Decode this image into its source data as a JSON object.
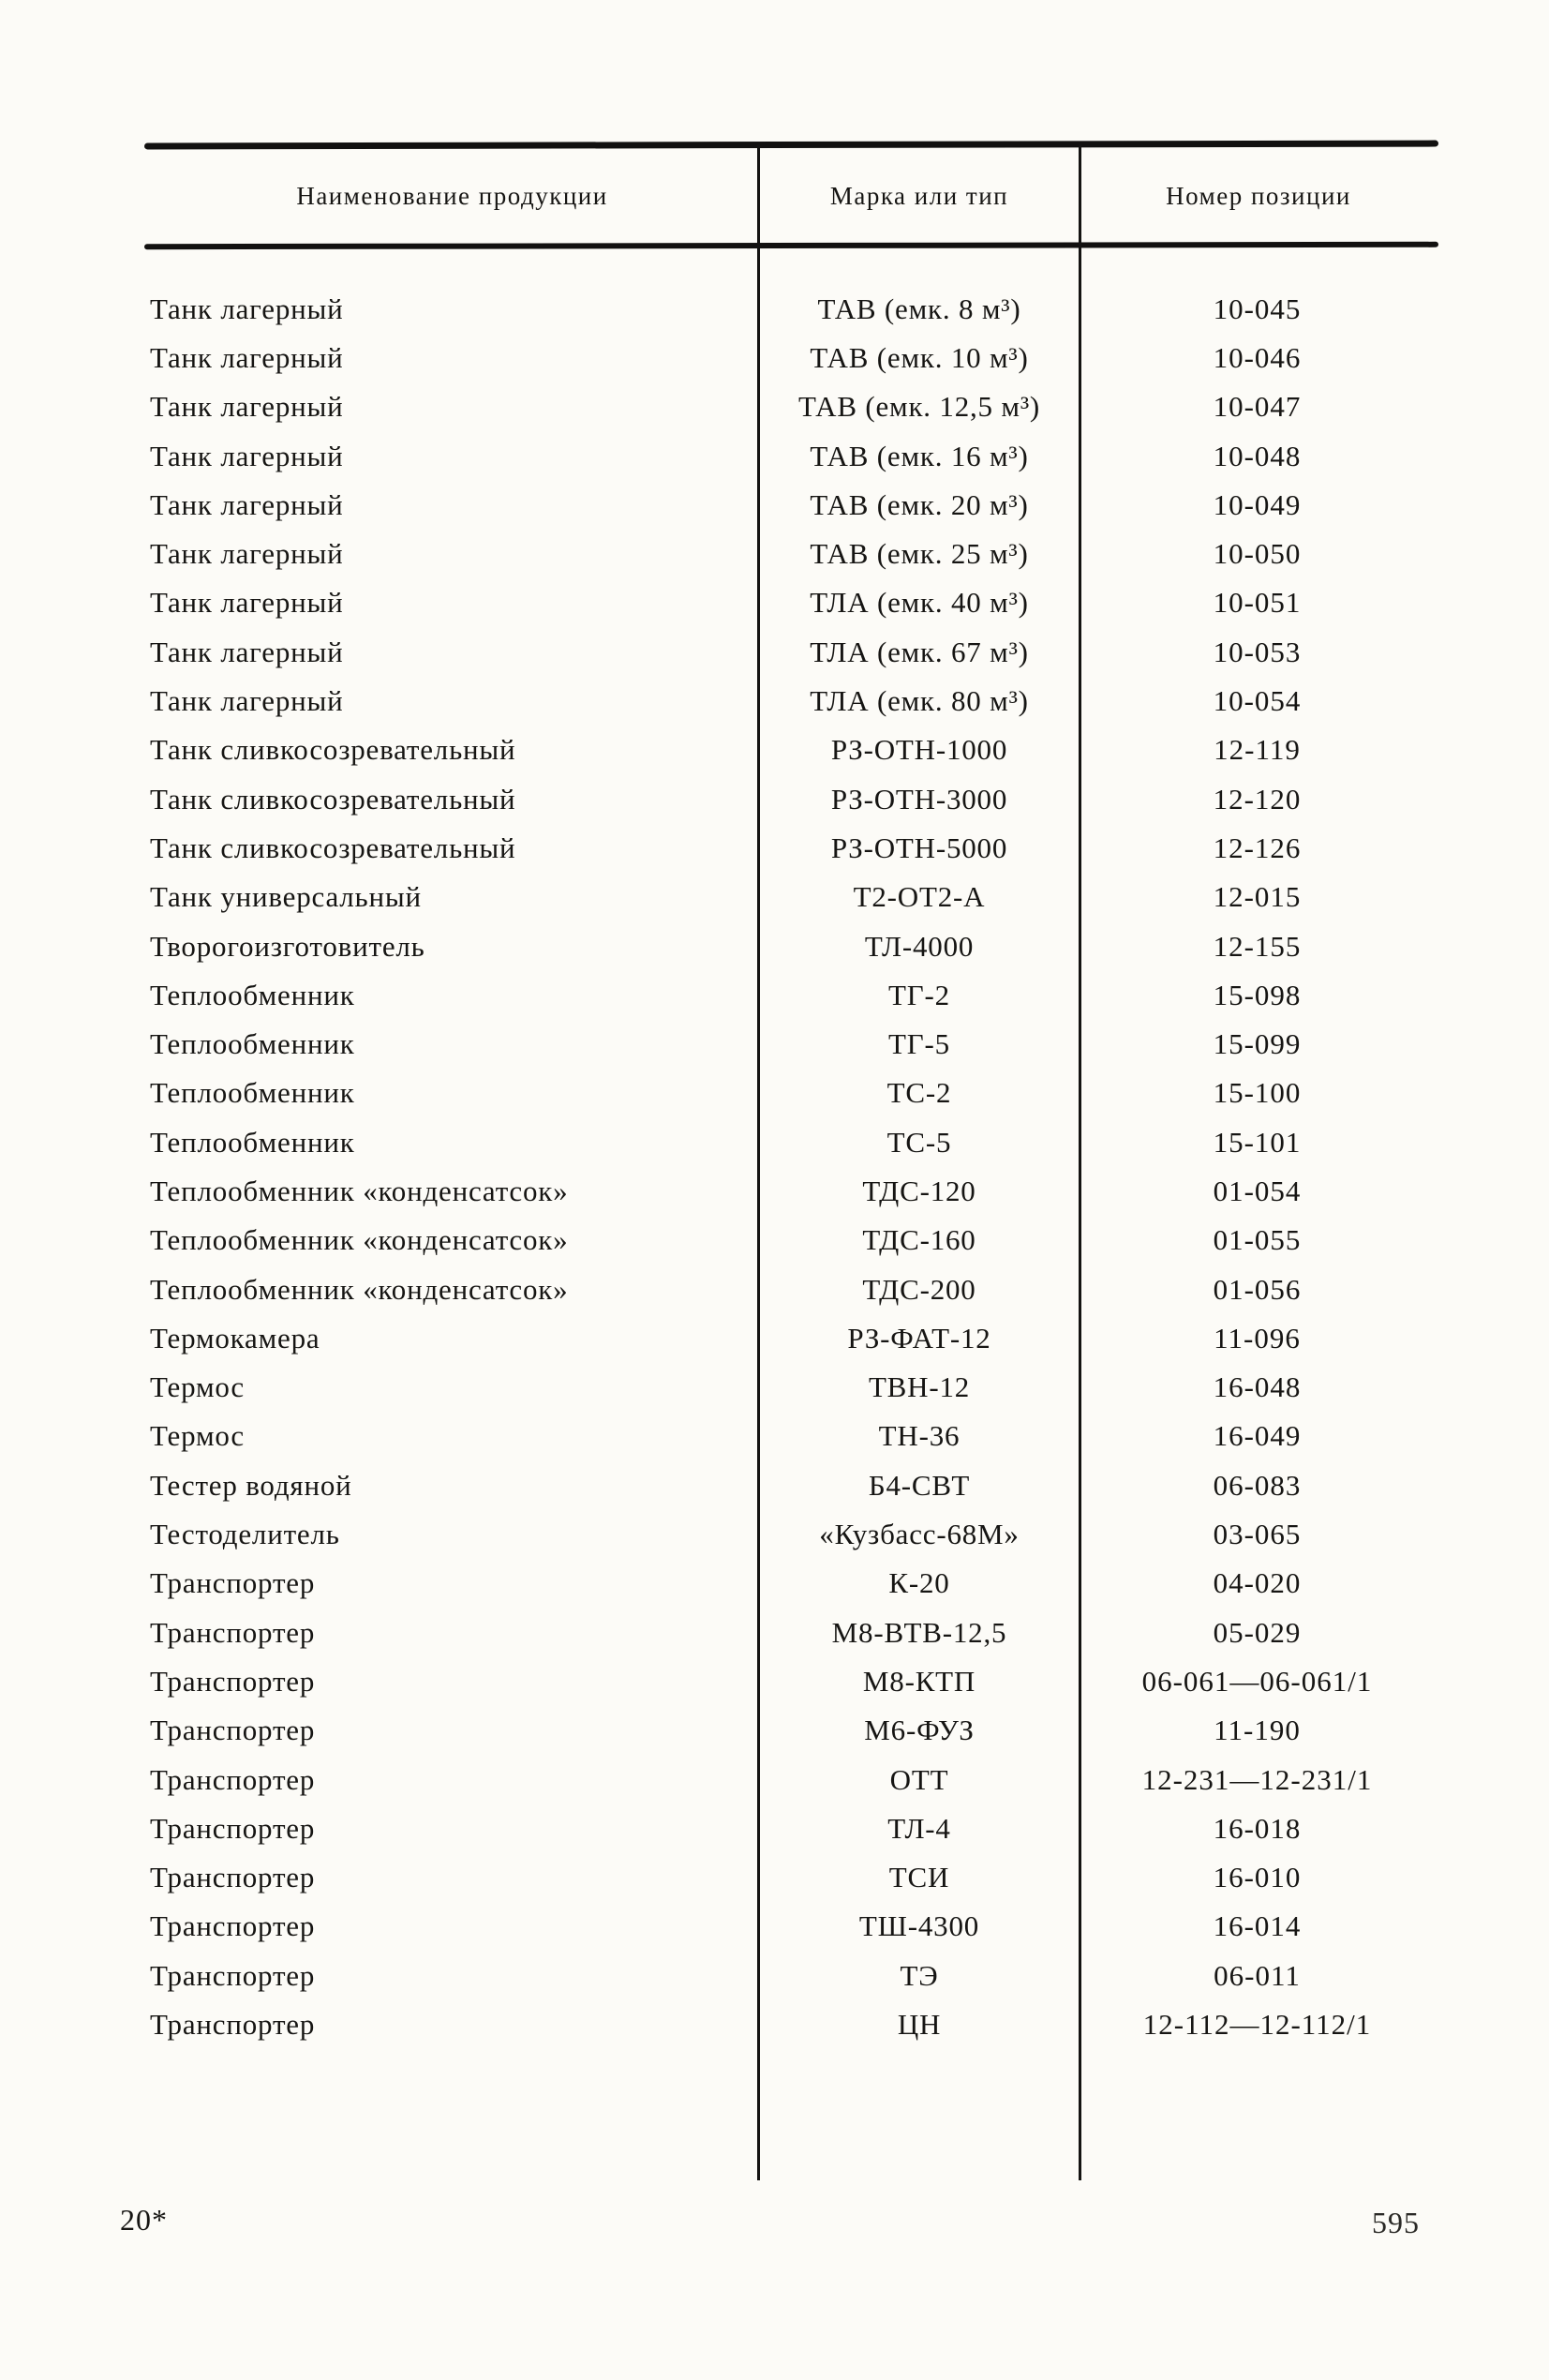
{
  "table": {
    "columns": [
      "Наименование продукции",
      "Марка или тип",
      "Номер позиции"
    ],
    "rows": [
      [
        "Танк лагерный",
        "ТАВ (емк. 8 м³)",
        "10-045"
      ],
      [
        "Танк лагерный",
        "ТАВ (емк. 10 м³)",
        "10-046"
      ],
      [
        "Танк лагерный",
        "ТАВ (емк. 12,5 м³)",
        "10-047"
      ],
      [
        "Танк лагерный",
        "ТАВ (емк. 16 м³)",
        "10-048"
      ],
      [
        "Танк лагерный",
        "ТАВ (емк. 20 м³)",
        "10-049"
      ],
      [
        "Танк лагерный",
        "ТАВ (емк. 25 м³)",
        "10-050"
      ],
      [
        "Танк лагерный",
        "ТЛА (емк. 40 м³)",
        "10-051"
      ],
      [
        "Танк лагерный",
        "ТЛА (емк. 67 м³)",
        "10-053"
      ],
      [
        "Танк лагерный",
        "ТЛА (емк. 80 м³)",
        "10-054"
      ],
      [
        "Танк сливкосозревательный",
        "РЗ-ОТН-1000",
        "12-119"
      ],
      [
        "Танк сливкосозревательный",
        "РЗ-ОТН-3000",
        "12-120"
      ],
      [
        "Танк сливкосозревательный",
        "РЗ-ОТН-5000",
        "12-126"
      ],
      [
        "Танк универсальный",
        "Т2-ОТ2-А",
        "12-015"
      ],
      [
        "Творогоизготовитель",
        "ТЛ-4000",
        "12-155"
      ],
      [
        "Теплообменник",
        "ТГ-2",
        "15-098"
      ],
      [
        "Теплообменник",
        "ТГ-5",
        "15-099"
      ],
      [
        "Теплообменник",
        "ТС-2",
        "15-100"
      ],
      [
        "Теплообменник",
        "ТС-5",
        "15-101"
      ],
      [
        "Теплообменник  «конденсатсок»",
        "ТДС-120",
        "01-054"
      ],
      [
        "Теплообменник «конденсатсок»",
        "ТДС-160",
        "01-055"
      ],
      [
        "Теплообменник «конденсатсок»",
        "ТДС-200",
        "01-056"
      ],
      [
        "Термокамера",
        "РЗ-ФАТ-12",
        "11-096"
      ],
      [
        "Термос",
        "ТВН-12",
        "16-048"
      ],
      [
        "Термос",
        "ТН-36",
        "16-049"
      ],
      [
        "Тестер водяной",
        "Б4-СВТ",
        "06-083"
      ],
      [
        "Тестоделитель",
        "«Кузбасс-68М»",
        "03-065"
      ],
      [
        "Транспортер",
        "К-20",
        "04-020"
      ],
      [
        "Транспортер",
        "М8-ВТВ-12,5",
        "05-029"
      ],
      [
        "Транспортер",
        "М8-КТП",
        "06-061—06-061/1"
      ],
      [
        "Транспортер",
        "М6-ФУЗ",
        "11-190"
      ],
      [
        "Транспортер",
        "ОТТ",
        "12-231—12-231/1"
      ],
      [
        "Транспортер",
        "ТЛ-4",
        "16-018"
      ],
      [
        "Транспортер",
        "ТСИ",
        "16-010"
      ],
      [
        "Транспортер",
        "ТШ-4300",
        "16-014"
      ],
      [
        "Транспортер",
        "ТЭ",
        "06-011"
      ],
      [
        "Транспортер",
        "ЦН",
        "12-112—12-112/1"
      ]
    ]
  },
  "footer": {
    "left_mark": "20*",
    "page_number": "595"
  },
  "colors": {
    "paper": "#fcfbf7",
    "ink": "#161513"
  }
}
